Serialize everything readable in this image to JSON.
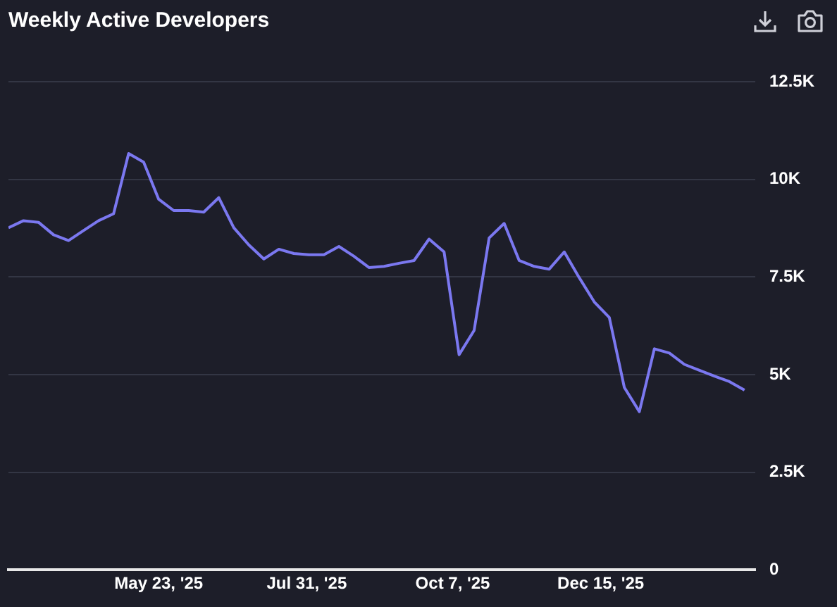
{
  "chart_data": {
    "type": "line",
    "title": "Weekly Active Developers",
    "x": [
      "2025-03-14",
      "2025-03-21",
      "2025-03-28",
      "2025-04-04",
      "2025-04-11",
      "2025-04-18",
      "2025-04-25",
      "2025-05-02",
      "2025-05-09",
      "2025-05-16",
      "2025-05-23",
      "2025-05-30",
      "2025-06-06",
      "2025-06-13",
      "2025-06-20",
      "2025-06-27",
      "2025-07-04",
      "2025-07-11",
      "2025-07-18",
      "2025-07-25",
      "2025-08-01",
      "2025-08-08",
      "2025-08-15",
      "2025-08-22",
      "2025-08-29",
      "2025-09-05",
      "2025-09-12",
      "2025-09-19",
      "2025-09-26",
      "2025-10-03",
      "2025-10-10",
      "2025-10-17",
      "2025-10-24",
      "2025-10-31",
      "2025-11-07",
      "2025-11-14",
      "2025-11-21",
      "2025-11-28",
      "2025-12-05",
      "2025-12-12",
      "2025-12-19",
      "2025-12-26",
      "2026-01-02",
      "2026-01-09",
      "2026-01-16",
      "2026-01-23",
      "2026-01-30",
      "2026-02-06",
      "2026-02-13",
      "2026-02-20"
    ],
    "series": [
      {
        "color": "#7b78f0",
        "values": [
          8760,
          8940,
          8900,
          8580,
          8430,
          8690,
          8940,
          9120,
          10660,
          10440,
          9490,
          9200,
          9200,
          9160,
          9530,
          8760,
          8320,
          7960,
          8210,
          8100,
          8070,
          8070,
          8280,
          8030,
          7740,
          7770,
          7850,
          7920,
          8470,
          8140,
          5510,
          6130,
          8500,
          8870,
          7920,
          7770,
          7700,
          8140,
          7480,
          6860,
          6460,
          4670,
          4050,
          5660,
          5550,
          5260,
          5110,
          4960,
          4820,
          4600
        ]
      }
    ],
    "xlim": [
      "2025-03-14",
      "2026-02-25"
    ],
    "xticks": [
      {
        "value": "2025-05-23",
        "label": "May 23, '25"
      },
      {
        "value": "2025-07-31",
        "label": "Jul 31, '25"
      },
      {
        "value": "2025-10-07",
        "label": "Oct 7, '25"
      },
      {
        "value": "2025-12-15",
        "label": "Dec 15, '25"
      }
    ],
    "ylim": [
      0,
      12500
    ],
    "yticks": [
      0,
      {
        "value": 2500,
        "label": "2.5K"
      },
      {
        "value": 5000,
        "label": "5K"
      },
      {
        "value": 7500,
        "label": "7.5K"
      },
      {
        "value": 10000,
        "label": "10K"
      },
      {
        "value": 12500,
        "label": "12.5K"
      }
    ],
    "grid": "y",
    "legend": false,
    "marker": "none",
    "line_style": "solid"
  }
}
